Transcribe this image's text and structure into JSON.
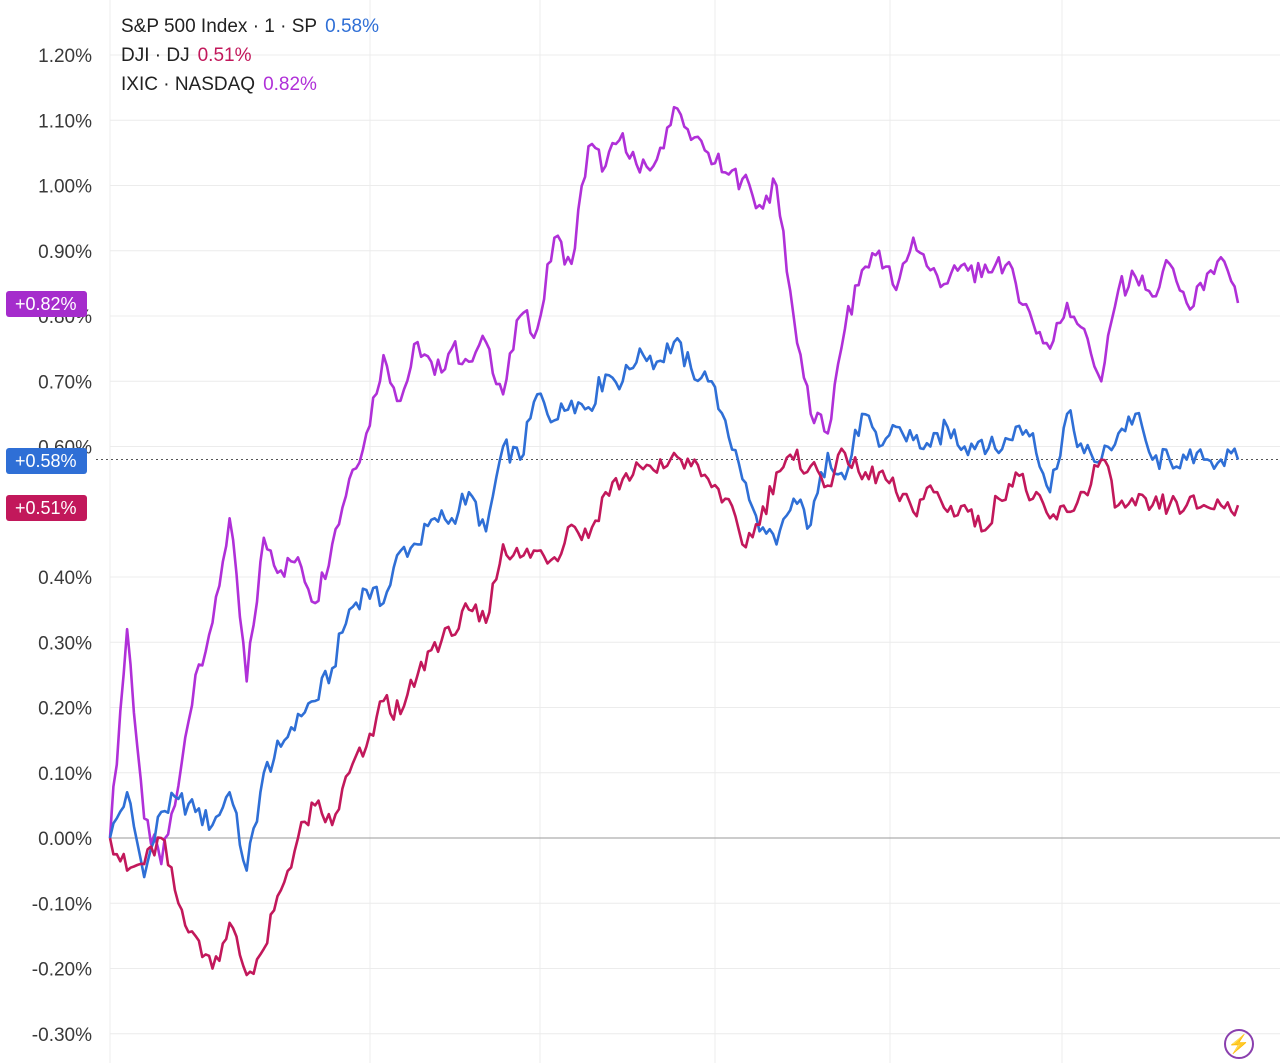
{
  "legend": [
    {
      "name": "S&P 500 Index · 1 · SP",
      "value": "0.58%",
      "color": "#2f6fd6"
    },
    {
      "name": "DJI · DJ",
      "value": "0.51%",
      "color": "#c2185b"
    },
    {
      "name": "IXIC · NASDAQ",
      "value": "0.82%",
      "color": "#b030d8"
    }
  ],
  "badges": {
    "nasdaq": {
      "label": "+0.82%",
      "color": "#a52ccc"
    },
    "sp": {
      "label": "+0.58%",
      "color": "#2f6fd6"
    },
    "dj": {
      "label": "+0.51%",
      "color": "#c2185b"
    }
  },
  "icon": "lightning-icon",
  "chart_data": {
    "type": "line",
    "ylim": [
      -0.33,
      1.25
    ],
    "y_ticks": [
      "1.20%",
      "1.10%",
      "1.00%",
      "0.90%",
      "0.80%",
      "0.70%",
      "0.60%",
      "0.40%",
      "0.30%",
      "0.20%",
      "0.10%",
      "0.00%",
      "-0.10%",
      "-0.20%",
      "-0.30%"
    ],
    "y_tick_values": [
      1.2,
      1.1,
      1.0,
      0.9,
      0.8,
      0.7,
      0.6,
      0.4,
      0.3,
      0.2,
      0.1,
      0.0,
      -0.1,
      -0.2,
      -0.3
    ],
    "x": [
      0,
      1,
      2,
      3,
      4,
      5,
      6,
      7,
      8,
      9,
      10,
      11,
      12,
      13,
      14,
      15,
      16,
      17,
      18,
      19,
      20,
      21,
      22,
      23,
      24,
      25,
      26,
      27,
      28,
      29,
      30,
      31,
      32,
      33,
      34,
      35,
      36,
      37,
      38,
      39,
      40,
      41,
      42,
      43,
      44,
      45,
      46,
      47,
      48,
      49,
      50,
      51,
      52,
      53,
      54,
      55,
      56,
      57,
      58,
      59,
      60,
      61,
      62,
      63,
      64,
      65,
      66
    ],
    "grid": true,
    "series": [
      {
        "name": "IXIC · NASDAQ",
        "color": "#b030d8",
        "values": [
          0.0,
          0.32,
          0.03,
          -0.04,
          0.08,
          0.25,
          0.33,
          0.49,
          0.24,
          0.46,
          0.41,
          0.43,
          0.36,
          0.45,
          0.55,
          0.62,
          0.74,
          0.67,
          0.76,
          0.71,
          0.75,
          0.73,
          0.76,
          0.68,
          0.8,
          0.78,
          0.92,
          0.88,
          1.06,
          1.03,
          1.08,
          1.02,
          1.04,
          1.12,
          1.07,
          1.05,
          1.02,
          1.01,
          0.97,
          1.0,
          0.8,
          0.65,
          0.62,
          0.78,
          0.87,
          0.9,
          0.84,
          0.92,
          0.87,
          0.85,
          0.88,
          0.86,
          0.89,
          0.85,
          0.79,
          0.75,
          0.82,
          0.78,
          0.7,
          0.84,
          0.86,
          0.83,
          0.88,
          0.82,
          0.84,
          0.89,
          0.82
        ]
      },
      {
        "name": "S&P 500 Index · 1 · SP",
        "color": "#2f6fd6",
        "values": [
          0.0,
          0.07,
          -0.06,
          0.04,
          0.06,
          0.04,
          0.02,
          0.07,
          -0.05,
          0.1,
          0.14,
          0.19,
          0.21,
          0.26,
          0.35,
          0.38,
          0.36,
          0.44,
          0.45,
          0.49,
          0.49,
          0.53,
          0.47,
          0.6,
          0.58,
          0.68,
          0.64,
          0.67,
          0.66,
          0.71,
          0.7,
          0.75,
          0.73,
          0.76,
          0.72,
          0.7,
          0.64,
          0.55,
          0.47,
          0.45,
          0.52,
          0.48,
          0.59,
          0.55,
          0.65,
          0.6,
          0.63,
          0.61,
          0.6,
          0.63,
          0.6,
          0.61,
          0.59,
          0.63,
          0.62,
          0.53,
          0.65,
          0.59,
          0.58,
          0.62,
          0.65,
          0.58,
          0.58,
          0.58,
          0.58,
          0.58,
          0.58
        ]
      },
      {
        "name": "DJI · DJ",
        "color": "#c2185b",
        "values": [
          0.0,
          -0.05,
          -0.04,
          0.0,
          -0.1,
          -0.15,
          -0.2,
          -0.13,
          -0.21,
          -0.17,
          -0.08,
          0.0,
          0.05,
          0.02,
          0.1,
          0.14,
          0.21,
          0.19,
          0.25,
          0.3,
          0.31,
          0.35,
          0.33,
          0.45,
          0.43,
          0.44,
          0.43,
          0.48,
          0.46,
          0.53,
          0.55,
          0.57,
          0.56,
          0.59,
          0.57,
          0.55,
          0.52,
          0.45,
          0.48,
          0.56,
          0.58,
          0.57,
          0.54,
          0.59,
          0.55,
          0.56,
          0.53,
          0.5,
          0.54,
          0.5,
          0.51,
          0.47,
          0.52,
          0.56,
          0.52,
          0.49,
          0.5,
          0.53,
          0.58,
          0.51,
          0.51,
          0.51,
          0.51,
          0.51,
          0.51,
          0.51,
          0.51
        ]
      }
    ],
    "current_value": 0.58
  }
}
